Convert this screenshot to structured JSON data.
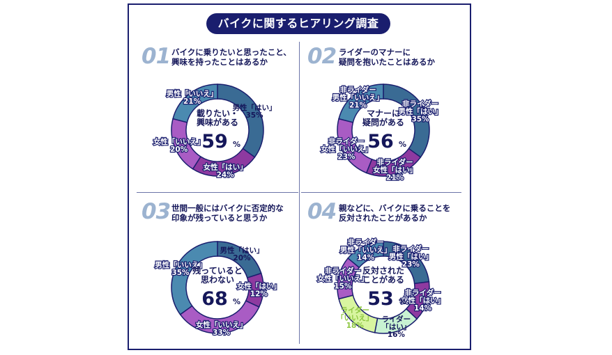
{
  "title": "バイクに関するヒアリング調査",
  "questions": [
    {
      "num": "01",
      "text": "バイクに乗りたいと思ったこと、\n興味を持ったことはあるか"
    },
    {
      "num": "02",
      "text": "ライダーのマナーに\n疑問を抱いたことはあるか"
    },
    {
      "num": "03",
      "text": "世間一般にはバイクに否定的な\n印象が残っていると思うか"
    },
    {
      "num": "04",
      "text": "親などに、バイクに乗ることを\n反対されたことがあるか"
    }
  ],
  "colors": {
    "navy": "#1a1e6e",
    "steel": "#3a6b94",
    "teal": "#4b8ab0",
    "purple": "#8e3aa0",
    "violet": "#a95cc4",
    "lime": "#d8f5a0",
    "mint": "#c8f2d2",
    "white": "#ffffff"
  },
  "chart_data": [
    {
      "type": "pie",
      "center_text": [
        "載りたい・",
        "興味がある"
      ],
      "center_value": "59",
      "center_unit": "%",
      "slices": [
        {
          "label": "男性「はい」",
          "value": 35,
          "value_text": "35%",
          "color": "#3a6b94",
          "text_color": "#15175a"
        },
        {
          "label": "女性「はい」",
          "value": 24,
          "value_text": "24%",
          "color": "#8e3aa0",
          "text_color": "#ffffff"
        },
        {
          "label": "女性「いいえ」",
          "value": 20,
          "value_text": "20%",
          "color": "#a95cc4",
          "text_color": "#ffffff"
        },
        {
          "label": "男性「いいえ」",
          "value": 21,
          "value_text": "21%",
          "color": "#4b8ab0",
          "text_color": "#ffffff"
        }
      ]
    },
    {
      "type": "pie",
      "center_text": [
        "マナーに",
        "疑問がある"
      ],
      "center_value": "56",
      "center_unit": "%",
      "slices": [
        {
          "label": "非ライダー\n男性「はい」",
          "value": 35,
          "value_text": "35%",
          "color": "#3a6b94",
          "text_color": "#ffffff"
        },
        {
          "label": "非ライダー\n女性「はい」",
          "value": 21,
          "value_text": "21%",
          "color": "#8e3aa0",
          "text_color": "#ffffff"
        },
        {
          "label": "非ライダー\n女性「いいえ」",
          "value": 23,
          "value_text": "23%",
          "color": "#a95cc4",
          "text_color": "#ffffff"
        },
        {
          "label": "非ライダー\n男性「いいえ」",
          "value": 21,
          "value_text": "21%",
          "color": "#4b8ab0",
          "text_color": "#ffffff"
        }
      ]
    },
    {
      "type": "pie",
      "center_text": [
        "残っていると",
        "思わない"
      ],
      "center_value": "68",
      "center_unit": "%",
      "slices": [
        {
          "label": "男性「はい」",
          "value": 20,
          "value_text": "20%",
          "color": "#3a6b94",
          "text_color": "#15175a"
        },
        {
          "label": "女性「はい」",
          "value": 12,
          "value_text": "12%",
          "color": "#8e3aa0",
          "text_color": "#ffffff"
        },
        {
          "label": "女性「いいえ」",
          "value": 33,
          "value_text": "33%",
          "color": "#a95cc4",
          "text_color": "#ffffff"
        },
        {
          "label": "男性「いいえ」",
          "value": 35,
          "value_text": "35%",
          "color": "#4b8ab0",
          "text_color": "#ffffff"
        }
      ]
    },
    {
      "type": "pie",
      "center_text": [
        "反対された",
        "ことがある"
      ],
      "center_value": "53",
      "center_unit": "%",
      "slices": [
        {
          "label": "非ライダー\n男性「はい」",
          "value": 23,
          "value_text": "23%",
          "color": "#3a6b94",
          "text_color": "#ffffff"
        },
        {
          "label": "非ライダー\n女性「はい」",
          "value": 14,
          "value_text": "14%",
          "color": "#8e3aa0",
          "text_color": "#ffffff"
        },
        {
          "label": "ライダー\n「はい」",
          "value": 16,
          "value_text": "16%",
          "color": "#c8f2d2",
          "text_color": "#15175a"
        },
        {
          "label": "ライダー\n「いいえ」",
          "value": 18,
          "value_text": "18%",
          "color": "#d8f5a0",
          "text_color": "#8cc63f"
        },
        {
          "label": "非ライダー\n女性「いいえ」",
          "value": 15,
          "value_text": "15%",
          "color": "#a95cc4",
          "text_color": "#ffffff"
        },
        {
          "label": "非ライダー\n男性「いいえ」",
          "value": 14,
          "value_text": "14%",
          "color": "#4b8ab0",
          "text_color": "#ffffff"
        }
      ]
    }
  ]
}
